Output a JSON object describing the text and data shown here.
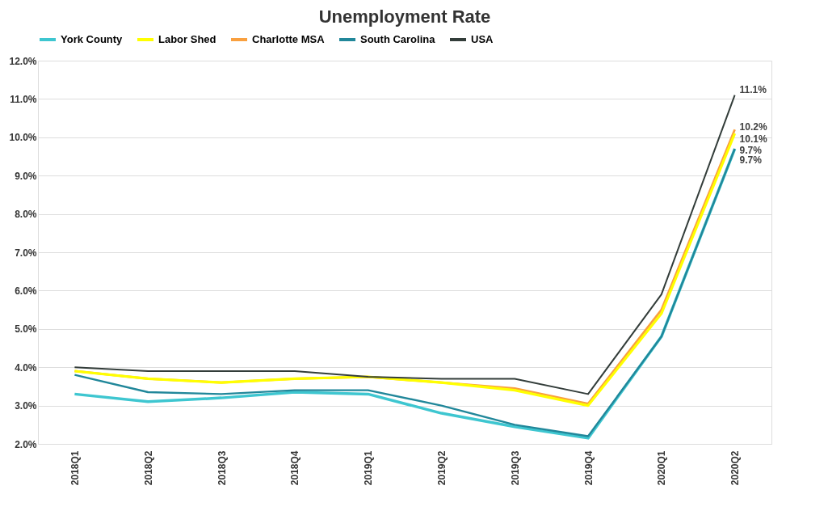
{
  "chart_data": {
    "type": "line",
    "title": "Unemployment Rate",
    "categories": [
      "2018Q1",
      "2018Q2",
      "2018Q3",
      "2018Q4",
      "2019Q1",
      "2019Q2",
      "2019Q3",
      "2019Q4",
      "2020Q1",
      "2020Q2"
    ],
    "series": [
      {
        "name": "York County",
        "color": "#3ec6d0",
        "values": [
          3.3,
          3.1,
          3.2,
          3.35,
          3.3,
          2.8,
          2.45,
          2.15,
          4.8,
          9.7
        ],
        "value_labels": [
          null,
          null,
          null,
          null,
          null,
          null,
          null,
          null,
          null,
          "9.7%"
        ]
      },
      {
        "name": "Labor Shed",
        "color": "#ffff00",
        "values": [
          3.9,
          3.7,
          3.6,
          3.7,
          3.75,
          3.6,
          3.4,
          3.0,
          5.4,
          10.1
        ],
        "value_labels": [
          null,
          null,
          null,
          null,
          null,
          null,
          null,
          null,
          null,
          "10.1%"
        ]
      },
      {
        "name": "Charlotte MSA",
        "color": "#f9a03f",
        "values": [
          3.9,
          3.7,
          3.6,
          3.7,
          3.75,
          3.6,
          3.45,
          3.05,
          5.5,
          10.2
        ],
        "value_labels": [
          null,
          null,
          null,
          null,
          null,
          null,
          null,
          null,
          null,
          "10.2%"
        ]
      },
      {
        "name": "South Carolina",
        "color": "#21879a",
        "values": [
          3.8,
          3.35,
          3.3,
          3.4,
          3.4,
          3.0,
          2.5,
          2.2,
          4.8,
          9.7
        ],
        "value_labels": [
          null,
          null,
          null,
          null,
          null,
          null,
          null,
          null,
          null,
          "9.7%"
        ]
      },
      {
        "name": "USA",
        "color": "#333d3a",
        "values": [
          4.0,
          3.9,
          3.9,
          3.9,
          3.75,
          3.7,
          3.7,
          3.3,
          5.9,
          11.1
        ],
        "value_labels": [
          null,
          null,
          null,
          null,
          null,
          null,
          null,
          null,
          null,
          "11.1%"
        ]
      }
    ],
    "ylim": [
      2,
      12
    ],
    "yticks": [
      {
        "value": 2,
        "label": "2.0%"
      },
      {
        "value": 3,
        "label": "3.0%"
      },
      {
        "value": 4,
        "label": "4.0%"
      },
      {
        "value": 5,
        "label": "5.0%"
      },
      {
        "value": 6,
        "label": "6.0%"
      },
      {
        "value": 7,
        "label": "7.0%"
      },
      {
        "value": 8,
        "label": "8.0%"
      },
      {
        "value": 9,
        "label": "9.0%"
      },
      {
        "value": 10,
        "label": "10.0%"
      },
      {
        "value": 11,
        "label": "11.0%"
      },
      {
        "value": 12,
        "label": "12.0%"
      }
    ],
    "grid": "y",
    "legend": "top",
    "marker": "none",
    "line_style": "solid"
  }
}
